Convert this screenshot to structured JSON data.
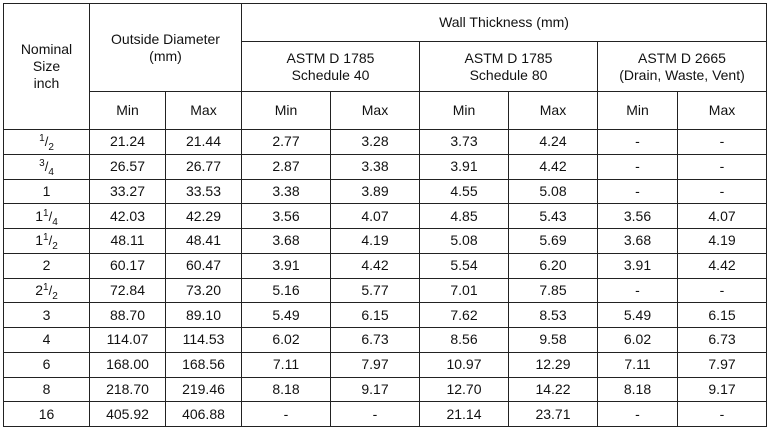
{
  "headers": {
    "nominal_size": [
      "Nominal",
      "Size",
      "inch"
    ],
    "outside_diameter": [
      "Outside Diameter",
      "(mm)"
    ],
    "wall_thickness": "Wall Thickness (mm)",
    "sched40": [
      "ASTM D 1785",
      "Schedule 40"
    ],
    "sched80": [
      "ASTM D 1785",
      "Schedule 80"
    ],
    "dwv": [
      "ASTM D 2665",
      "(Drain, Waste, Vent)"
    ],
    "min": "Min",
    "max": "Max"
  },
  "rows": [
    {
      "size": {
        "whole": "",
        "num": "1",
        "den": "2"
      },
      "od_min": "21.24",
      "od_max": "21.44",
      "s40_min": "2.77",
      "s40_max": "3.28",
      "s80_min": "3.73",
      "s80_max": "4.24",
      "dwv_min": "-",
      "dwv_max": "-"
    },
    {
      "size": {
        "whole": "",
        "num": "3",
        "den": "4"
      },
      "od_min": "26.57",
      "od_max": "26.77",
      "s40_min": "2.87",
      "s40_max": "3.38",
      "s80_min": "3.91",
      "s80_max": "4.42",
      "dwv_min": "-",
      "dwv_max": "-"
    },
    {
      "size": {
        "whole": "1",
        "num": "",
        "den": ""
      },
      "od_min": "33.27",
      "od_max": "33.53",
      "s40_min": "3.38",
      "s40_max": "3.89",
      "s80_min": "4.55",
      "s80_max": "5.08",
      "dwv_min": "-",
      "dwv_max": "-"
    },
    {
      "size": {
        "whole": "1",
        "num": "1",
        "den": "4"
      },
      "od_min": "42.03",
      "od_max": "42.29",
      "s40_min": "3.56",
      "s40_max": "4.07",
      "s80_min": "4.85",
      "s80_max": "5.43",
      "dwv_min": "3.56",
      "dwv_max": "4.07"
    },
    {
      "size": {
        "whole": "1",
        "num": "1",
        "den": "2"
      },
      "od_min": "48.11",
      "od_max": "48.41",
      "s40_min": "3.68",
      "s40_max": "4.19",
      "s80_min": "5.08",
      "s80_max": "5.69",
      "dwv_min": "3.68",
      "dwv_max": "4.19"
    },
    {
      "size": {
        "whole": "2",
        "num": "",
        "den": ""
      },
      "od_min": "60.17",
      "od_max": "60.47",
      "s40_min": "3.91",
      "s40_max": "4.42",
      "s80_min": "5.54",
      "s80_max": "6.20",
      "dwv_min": "3.91",
      "dwv_max": "4.42"
    },
    {
      "size": {
        "whole": "2",
        "num": "1",
        "den": "2"
      },
      "od_min": "72.84",
      "od_max": "73.20",
      "s40_min": "5.16",
      "s40_max": "5.77",
      "s80_min": "7.01",
      "s80_max": "7.85",
      "dwv_min": "-",
      "dwv_max": "-"
    },
    {
      "size": {
        "whole": "3",
        "num": "",
        "den": ""
      },
      "od_min": "88.70",
      "od_max": "89.10",
      "s40_min": "5.49",
      "s40_max": "6.15",
      "s80_min": "7.62",
      "s80_max": "8.53",
      "dwv_min": "5.49",
      "dwv_max": "6.15"
    },
    {
      "size": {
        "whole": "4",
        "num": "",
        "den": ""
      },
      "od_min": "114.07",
      "od_max": "114.53",
      "s40_min": "6.02",
      "s40_max": "6.73",
      "s80_min": "8.56",
      "s80_max": "9.58",
      "dwv_min": "6.02",
      "dwv_max": "6.73"
    },
    {
      "size": {
        "whole": "6",
        "num": "",
        "den": ""
      },
      "od_min": "168.00",
      "od_max": "168.56",
      "s40_min": "7.11",
      "s40_max": "7.97",
      "s80_min": "10.97",
      "s80_max": "12.29",
      "dwv_min": "7.11",
      "dwv_max": "7.97"
    },
    {
      "size": {
        "whole": "8",
        "num": "",
        "den": ""
      },
      "od_min": "218.70",
      "od_max": "219.46",
      "s40_min": "8.18",
      "s40_max": "9.17",
      "s80_min": "12.70",
      "s80_max": "14.22",
      "dwv_min": "8.18",
      "dwv_max": "9.17"
    },
    {
      "size": {
        "whole": "16",
        "num": "",
        "den": ""
      },
      "od_min": "405.92",
      "od_max": "406.88",
      "s40_min": "-",
      "s40_max": "-",
      "s80_min": "21.14",
      "s80_max": "23.71",
      "dwv_min": "-",
      "dwv_max": "-"
    }
  ]
}
